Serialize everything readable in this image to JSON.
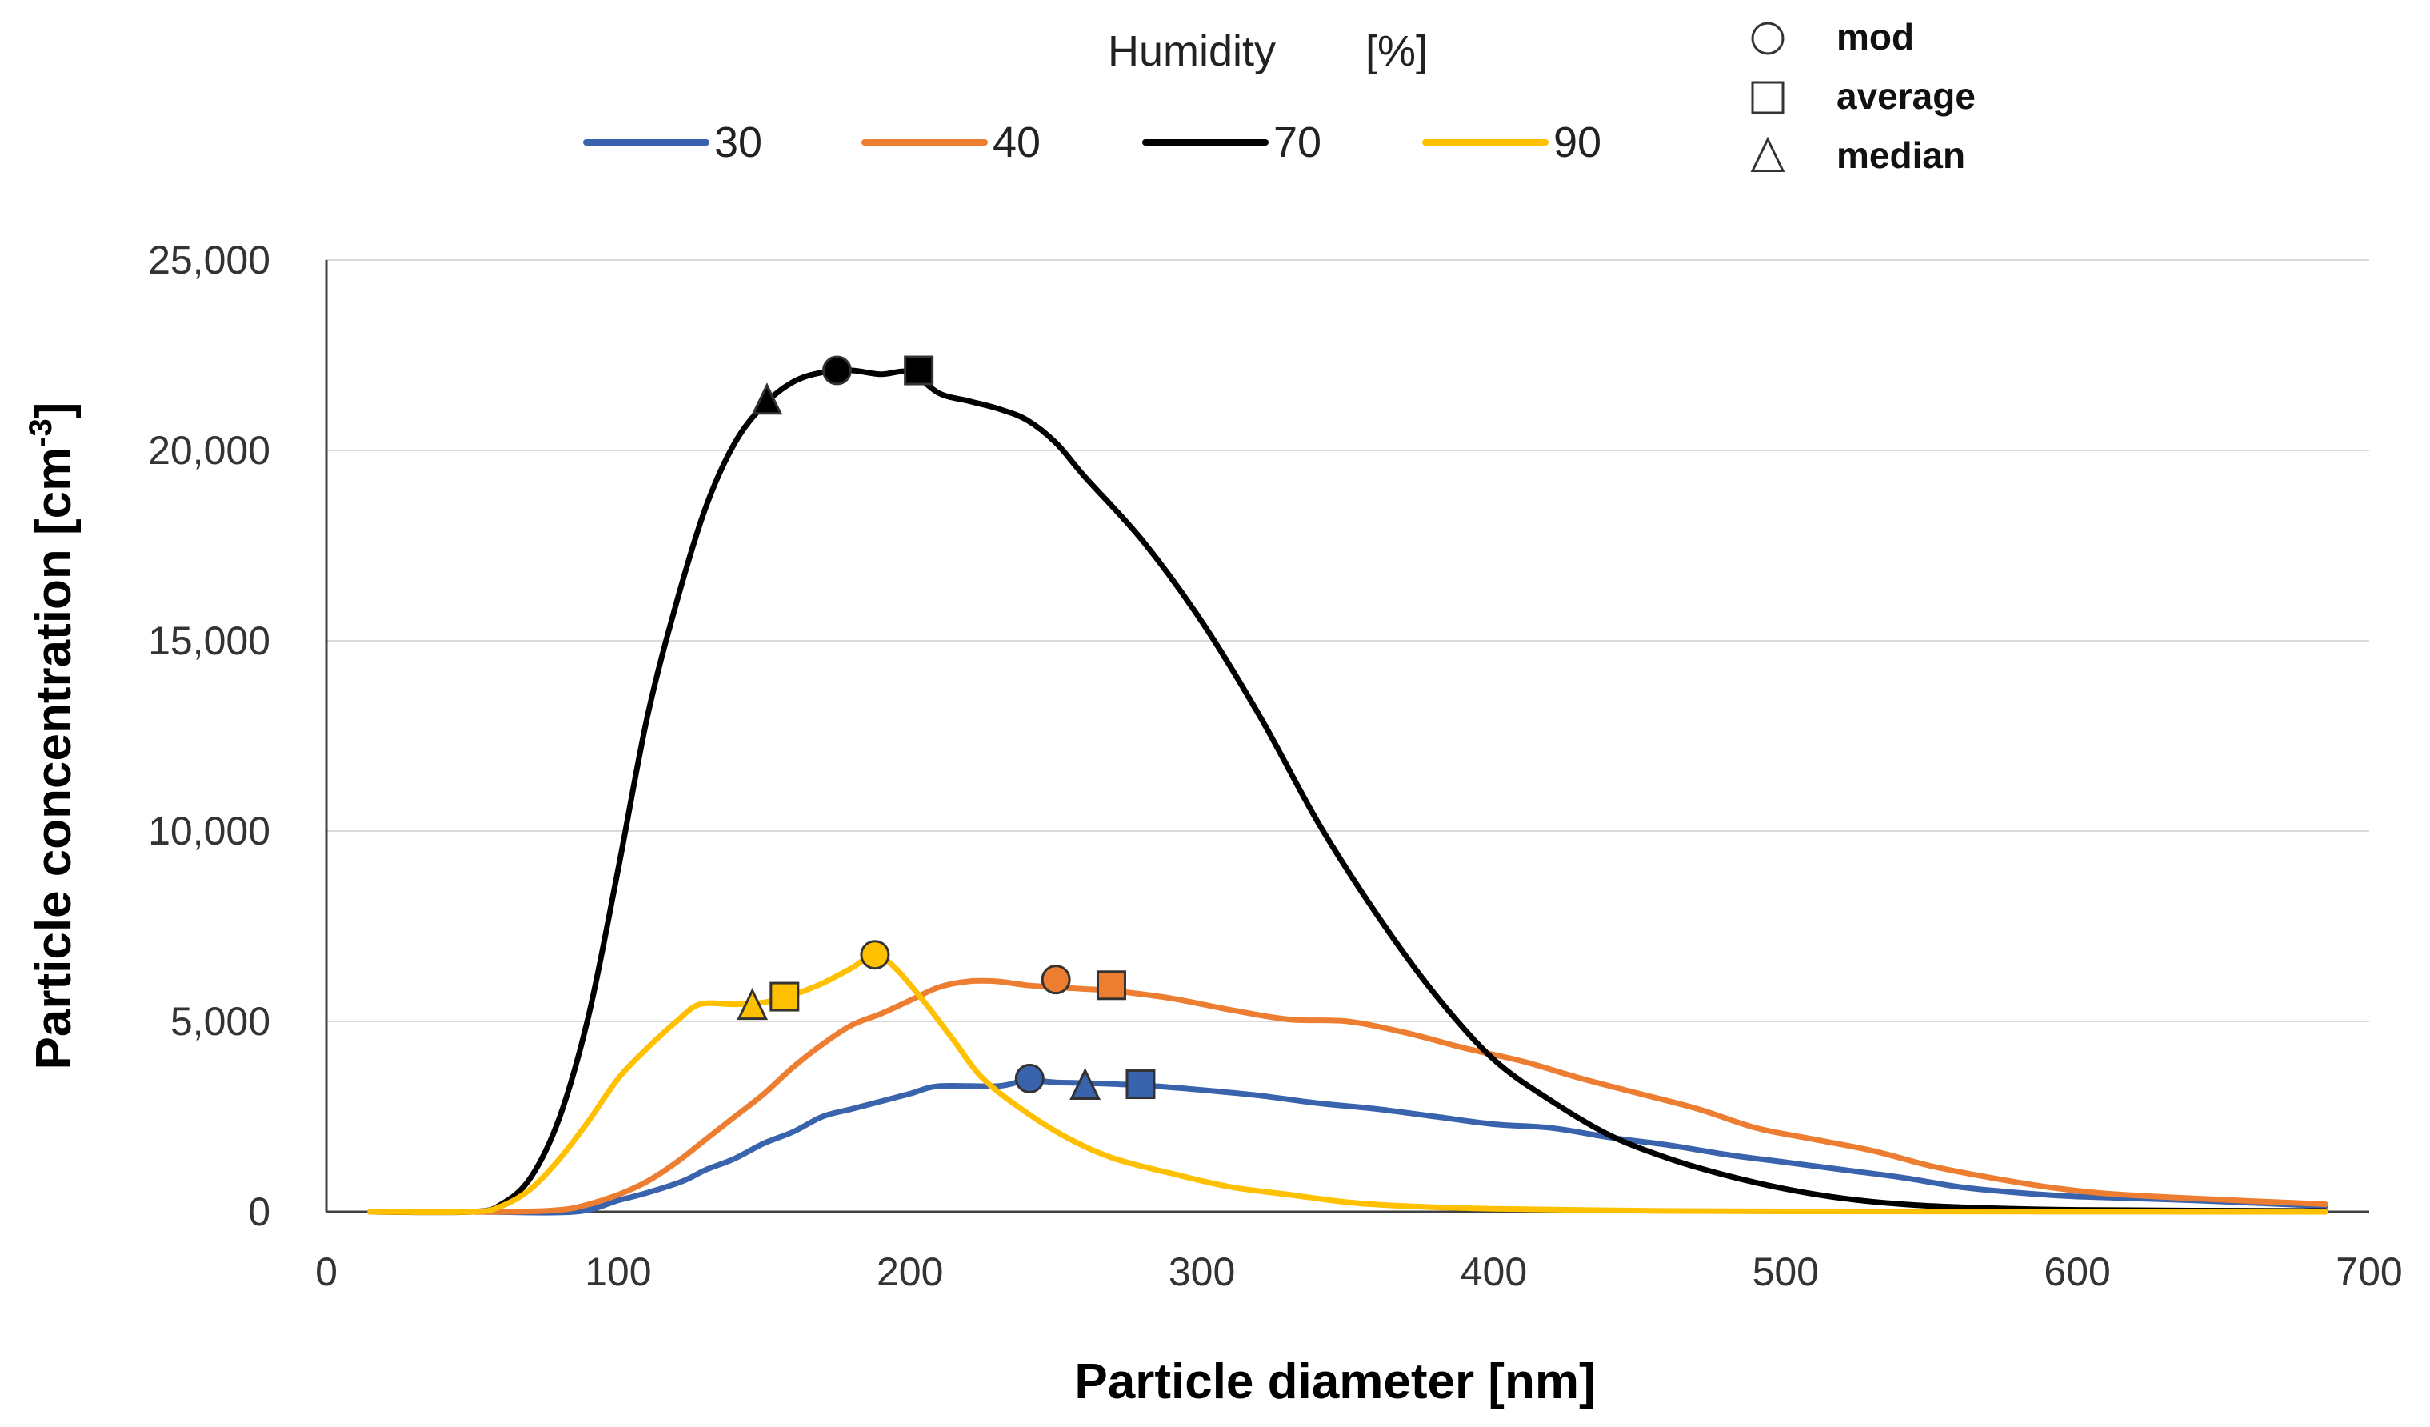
{
  "chart_data": {
    "type": "line",
    "title": "",
    "xlabel": "Particle diameter  [nm]",
    "ylabel": "Particle concentration [cm",
    "ylabel_sup": "-3",
    "ylabel_end": "]",
    "xlim": [
      0,
      700
    ],
    "ylim": [
      0,
      25000
    ],
    "x_ticks": [
      0,
      100,
      200,
      300,
      400,
      500,
      600,
      700
    ],
    "x_tick_labels": [
      "0",
      "100",
      "200",
      "300",
      "400",
      "500",
      "600",
      "700"
    ],
    "y_ticks": [
      0,
      5000,
      10000,
      15000,
      20000,
      25000
    ],
    "y_tick_labels": [
      "0",
      "5,000",
      "10,000",
      "15,000",
      "20,000",
      "25,000"
    ],
    "grid": "horizontal",
    "legend": {
      "title": "Humidity",
      "unit": "[%]",
      "placement": "top"
    },
    "marker_legend": [
      {
        "shape": "circle",
        "label": "mod"
      },
      {
        "shape": "square",
        "label": "average"
      },
      {
        "shape": "triangle",
        "label": "median"
      }
    ],
    "series": [
      {
        "name": "30",
        "color": "#3a63ad",
        "points": [
          [
            15,
            0
          ],
          [
            50,
            0
          ],
          [
            85,
            0
          ],
          [
            100,
            300
          ],
          [
            110,
            500
          ],
          [
            122,
            800
          ],
          [
            130,
            1100
          ],
          [
            140,
            1400
          ],
          [
            150,
            1800
          ],
          [
            160,
            2100
          ],
          [
            170,
            2500
          ],
          [
            180,
            2700
          ],
          [
            190,
            2900
          ],
          [
            200,
            3100
          ],
          [
            210,
            3300
          ],
          [
            230,
            3300
          ],
          [
            240,
            3450
          ],
          [
            250,
            3400
          ],
          [
            260,
            3380
          ],
          [
            280,
            3320
          ],
          [
            300,
            3200
          ],
          [
            320,
            3050
          ],
          [
            340,
            2850
          ],
          [
            360,
            2700
          ],
          [
            380,
            2500
          ],
          [
            400,
            2300
          ],
          [
            420,
            2200
          ],
          [
            440,
            1950
          ],
          [
            460,
            1750
          ],
          [
            480,
            1500
          ],
          [
            500,
            1300
          ],
          [
            520,
            1100
          ],
          [
            540,
            900
          ],
          [
            560,
            650
          ],
          [
            580,
            500
          ],
          [
            600,
            400
          ],
          [
            640,
            300
          ],
          [
            685,
            150
          ]
        ],
        "markers": {
          "mod": [
            241,
            3500
          ],
          "average": [
            279,
            3350
          ],
          "median": [
            260,
            3300
          ]
        }
      },
      {
        "name": "40",
        "color": "#ed7d31",
        "points": [
          [
            15,
            0
          ],
          [
            60,
            0
          ],
          [
            80,
            50
          ],
          [
            90,
            200
          ],
          [
            100,
            450
          ],
          [
            110,
            800
          ],
          [
            120,
            1300
          ],
          [
            130,
            1900
          ],
          [
            140,
            2500
          ],
          [
            150,
            3100
          ],
          [
            160,
            3800
          ],
          [
            170,
            4400
          ],
          [
            180,
            4900
          ],
          [
            190,
            5200
          ],
          [
            200,
            5550
          ],
          [
            210,
            5900
          ],
          [
            220,
            6050
          ],
          [
            230,
            6050
          ],
          [
            240,
            5950
          ],
          [
            250,
            5900
          ],
          [
            260,
            5850
          ],
          [
            270,
            5800
          ],
          [
            290,
            5600
          ],
          [
            310,
            5300
          ],
          [
            330,
            5050
          ],
          [
            350,
            5000
          ],
          [
            370,
            4700
          ],
          [
            390,
            4300
          ],
          [
            410,
            3950
          ],
          [
            430,
            3500
          ],
          [
            450,
            3100
          ],
          [
            470,
            2700
          ],
          [
            490,
            2200
          ],
          [
            510,
            1900
          ],
          [
            530,
            1600
          ],
          [
            550,
            1200
          ],
          [
            570,
            900
          ],
          [
            590,
            650
          ],
          [
            610,
            480
          ],
          [
            640,
            350
          ],
          [
            685,
            200
          ]
        ],
        "markers": {
          "mod": [
            250,
            6100
          ],
          "average": [
            269,
            5950
          ]
        }
      },
      {
        "name": "70",
        "color": "#000000",
        "points": [
          [
            15,
            0
          ],
          [
            50,
            0
          ],
          [
            60,
            200
          ],
          [
            70,
            900
          ],
          [
            80,
            2500
          ],
          [
            90,
            5200
          ],
          [
            100,
            9000
          ],
          [
            110,
            13000
          ],
          [
            120,
            16000
          ],
          [
            130,
            18500
          ],
          [
            140,
            20200
          ],
          [
            150,
            21200
          ],
          [
            160,
            21800
          ],
          [
            170,
            22050
          ],
          [
            180,
            22100
          ],
          [
            190,
            22000
          ],
          [
            200,
            22050
          ],
          [
            210,
            21500
          ],
          [
            220,
            21300
          ],
          [
            230,
            21100
          ],
          [
            240,
            20800
          ],
          [
            250,
            20200
          ],
          [
            260,
            19300
          ],
          [
            280,
            17600
          ],
          [
            300,
            15500
          ],
          [
            320,
            13000
          ],
          [
            340,
            10200
          ],
          [
            360,
            7800
          ],
          [
            380,
            5700
          ],
          [
            400,
            4000
          ],
          [
            420,
            2900
          ],
          [
            440,
            2000
          ],
          [
            460,
            1400
          ],
          [
            480,
            950
          ],
          [
            500,
            600
          ],
          [
            520,
            350
          ],
          [
            540,
            200
          ],
          [
            560,
            120
          ],
          [
            600,
            50
          ],
          [
            685,
            20
          ]
        ],
        "markers": {
          "mod": [
            175,
            22100
          ],
          "average": [
            203,
            22100
          ],
          "median": [
            151,
            21300
          ]
        }
      },
      {
        "name": "90",
        "color": "#ffc000",
        "points": [
          [
            15,
            0
          ],
          [
            50,
            0
          ],
          [
            60,
            150
          ],
          [
            70,
            600
          ],
          [
            80,
            1400
          ],
          [
            90,
            2400
          ],
          [
            100,
            3500
          ],
          [
            110,
            4300
          ],
          [
            120,
            5000
          ],
          [
            128,
            5450
          ],
          [
            140,
            5450
          ],
          [
            150,
            5500
          ],
          [
            160,
            5700
          ],
          [
            170,
            6000
          ],
          [
            180,
            6400
          ],
          [
            188,
            6750
          ],
          [
            195,
            6400
          ],
          [
            205,
            5500
          ],
          [
            215,
            4500
          ],
          [
            225,
            3500
          ],
          [
            240,
            2600
          ],
          [
            255,
            1900
          ],
          [
            270,
            1400
          ],
          [
            290,
            1000
          ],
          [
            310,
            650
          ],
          [
            330,
            450
          ],
          [
            350,
            250
          ],
          [
            370,
            150
          ],
          [
            400,
            80
          ],
          [
            450,
            30
          ],
          [
            500,
            10
          ],
          [
            685,
            0
          ]
        ],
        "markers": {
          "mod": [
            188,
            6750
          ],
          "average": [
            157,
            5650
          ],
          "median": [
            146,
            5400
          ]
        }
      }
    ]
  }
}
